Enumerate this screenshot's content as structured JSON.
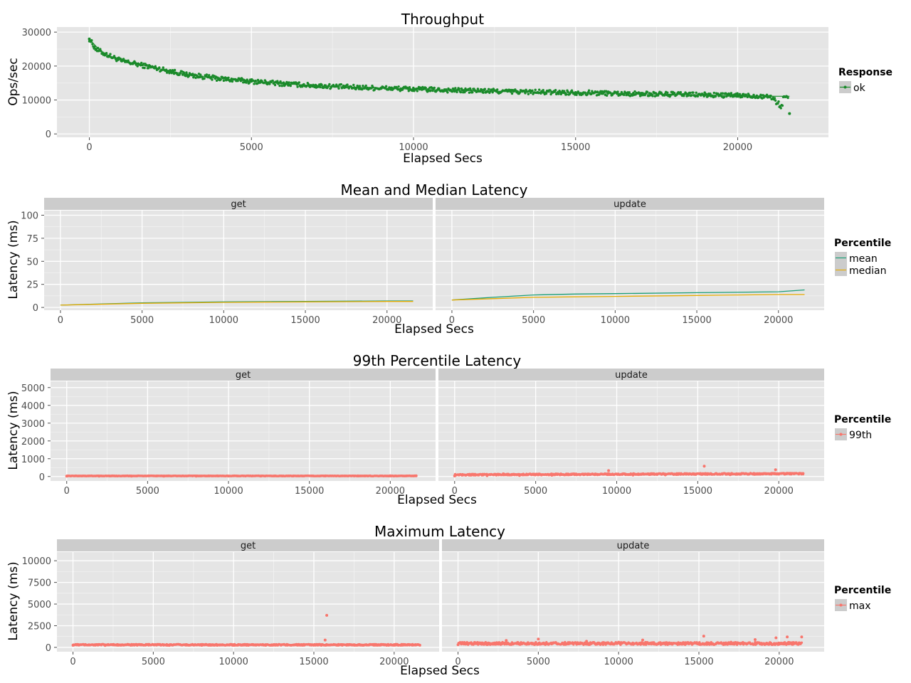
{
  "colors": {
    "panel_bg": "#E5E5E5",
    "grid_major": "#FFFFFF",
    "grid_minor": "#F2F2F2",
    "strip_bg": "#CCCCCC",
    "ok": "#1A8A2A",
    "mean": "#1B9E77",
    "median": "#E6AB02",
    "p99": "#F8766D",
    "max": "#F8766D"
  },
  "chart_data": [
    {
      "id": "throughput",
      "type": "scatter",
      "title": "Throughput",
      "xlabel": "Elapsed Secs",
      "ylabel": "Ops/sec",
      "xlim": [
        -1000,
        22800
      ],
      "ylim": [
        -1000,
        31500
      ],
      "xticks": [
        0,
        5000,
        10000,
        15000,
        20000
      ],
      "xtick_labels": [
        "0",
        "5000",
        "10000",
        "15000",
        "20000"
      ],
      "yticks": [
        0,
        10000,
        20000,
        30000
      ],
      "ytick_labels": [
        "0",
        "10000",
        "20000",
        "30000"
      ],
      "legend": {
        "title": "Response",
        "position": "right",
        "entries": [
          "ok"
        ]
      },
      "series": [
        {
          "name": "ok",
          "x": [
            0,
            200,
            500,
            1000,
            2000,
            3000,
            4000,
            5000,
            6000,
            7000,
            8000,
            9000,
            10000,
            11000,
            12000,
            13000,
            14000,
            15000,
            16000,
            17000,
            18000,
            19000,
            20000,
            21000,
            21600
          ],
          "y": [
            28000,
            25000,
            23500,
            21500,
            19500,
            17500,
            16300,
            15500,
            14800,
            14200,
            13800,
            13500,
            13200,
            12900,
            12700,
            12500,
            12300,
            12200,
            12000,
            11800,
            11700,
            11500,
            11300,
            11100,
            6000
          ]
        }
      ]
    },
    {
      "id": "mean-median",
      "type": "line",
      "title": "Mean and Median Latency",
      "xlabel": "Elapsed Secs",
      "ylabel": "Latency (ms)",
      "xlim": [
        -1000,
        22800
      ],
      "ylim": [
        -3,
        105
      ],
      "xticks": [
        0,
        5000,
        10000,
        15000,
        20000
      ],
      "xtick_labels": [
        "0",
        "5000",
        "10000",
        "15000",
        "20000"
      ],
      "yticks": [
        0,
        25,
        50,
        75,
        100
      ],
      "ytick_labels": [
        "0",
        "25",
        "50",
        "75",
        "100"
      ],
      "facets": [
        "get",
        "update"
      ],
      "legend": {
        "title": "Percentile",
        "position": "right",
        "entries": [
          "mean",
          "median"
        ]
      },
      "series": [
        {
          "name": "mean",
          "facet": "get",
          "x": [
            0,
            5000,
            10000,
            15000,
            20000,
            21600
          ],
          "y": [
            2.5,
            5,
            6,
            6.5,
            7,
            7
          ]
        },
        {
          "name": "median",
          "facet": "get",
          "x": [
            0,
            5000,
            10000,
            15000,
            20000,
            21600
          ],
          "y": [
            2.5,
            4.5,
            5.5,
            6,
            6.5,
            6.5
          ]
        },
        {
          "name": "mean",
          "facet": "update",
          "x": [
            0,
            2500,
            5000,
            7500,
            10000,
            15000,
            20000,
            21600
          ],
          "y": [
            8,
            11,
            13.5,
            14.5,
            15,
            16,
            17,
            19
          ]
        },
        {
          "name": "median",
          "facet": "update",
          "x": [
            0,
            2500,
            5000,
            7500,
            10000,
            15000,
            20000,
            21600
          ],
          "y": [
            8,
            9.5,
            11,
            11.5,
            12,
            13,
            14,
            14
          ]
        }
      ]
    },
    {
      "id": "p99",
      "type": "scatter",
      "title": "99th Percentile Latency",
      "xlabel": "Elapsed Secs",
      "ylabel": "Latency (ms)",
      "xlim": [
        -1000,
        22800
      ],
      "ylim": [
        -250,
        5350
      ],
      "xticks": [
        0,
        5000,
        10000,
        15000,
        20000
      ],
      "xtick_labels": [
        "0",
        "5000",
        "10000",
        "15000",
        "20000"
      ],
      "yticks": [
        0,
        1000,
        2000,
        3000,
        4000,
        5000
      ],
      "ytick_labels": [
        "0",
        "1000",
        "2000",
        "3000",
        "4000",
        "5000"
      ],
      "facets": [
        "get",
        "update"
      ],
      "legend": {
        "title": "Percentile",
        "position": "right",
        "entries": [
          "99th"
        ]
      },
      "series": [
        {
          "name": "99th",
          "facet": "get",
          "x": [
            0,
            2000,
            4000,
            6000,
            8000,
            10000,
            12000,
            14000,
            16000,
            18000,
            20000,
            21600
          ],
          "y": [
            20,
            20,
            20,
            20,
            20,
            25,
            25,
            30,
            35,
            35,
            40,
            40
          ]
        },
        {
          "name": "99th",
          "facet": "update",
          "x": [
            0,
            2000,
            3000,
            4000,
            6000,
            7500,
            9500,
            11000,
            13000,
            15400,
            17000,
            18500,
            19800,
            21500
          ],
          "y": [
            30,
            50,
            150,
            60,
            70,
            140,
            330,
            80,
            90,
            580,
            100,
            120,
            380,
            170
          ]
        }
      ]
    },
    {
      "id": "max",
      "type": "scatter",
      "title": "Maximum Latency",
      "xlabel": "Elapsed Secs",
      "ylabel": "Latency (ms)",
      "xlim": [
        -1000,
        22800
      ],
      "ylim": [
        -500,
        11000
      ],
      "xticks": [
        0,
        5000,
        10000,
        15000,
        20000
      ],
      "xtick_labels": [
        "0",
        "5000",
        "10000",
        "15000",
        "20000"
      ],
      "yticks": [
        0,
        2500,
        5000,
        7500,
        10000
      ],
      "ytick_labels": [
        "0",
        "2500",
        "5000",
        "7500",
        "10000"
      ],
      "facets": [
        "get",
        "update"
      ],
      "legend": {
        "title": "Percentile",
        "position": "right",
        "entries": [
          "max"
        ]
      },
      "series": [
        {
          "name": "max",
          "facet": "get",
          "x": [
            0,
            1000,
            2000,
            4000,
            6000,
            8000,
            10000,
            12000,
            14000,
            15700,
            15800,
            18000,
            20000,
            21600
          ],
          "y": [
            250,
            300,
            220,
            250,
            230,
            240,
            250,
            240,
            260,
            850,
            3700,
            250,
            250,
            250
          ]
        },
        {
          "name": "max",
          "facet": "update",
          "x": [
            0,
            2000,
            3000,
            5000,
            6500,
            8000,
            10000,
            11500,
            13000,
            15300,
            17000,
            18500,
            19800,
            20500,
            21400
          ],
          "y": [
            300,
            350,
            800,
            950,
            500,
            700,
            600,
            850,
            500,
            1300,
            600,
            900,
            1100,
            1200,
            1200
          ]
        }
      ]
    }
  ]
}
